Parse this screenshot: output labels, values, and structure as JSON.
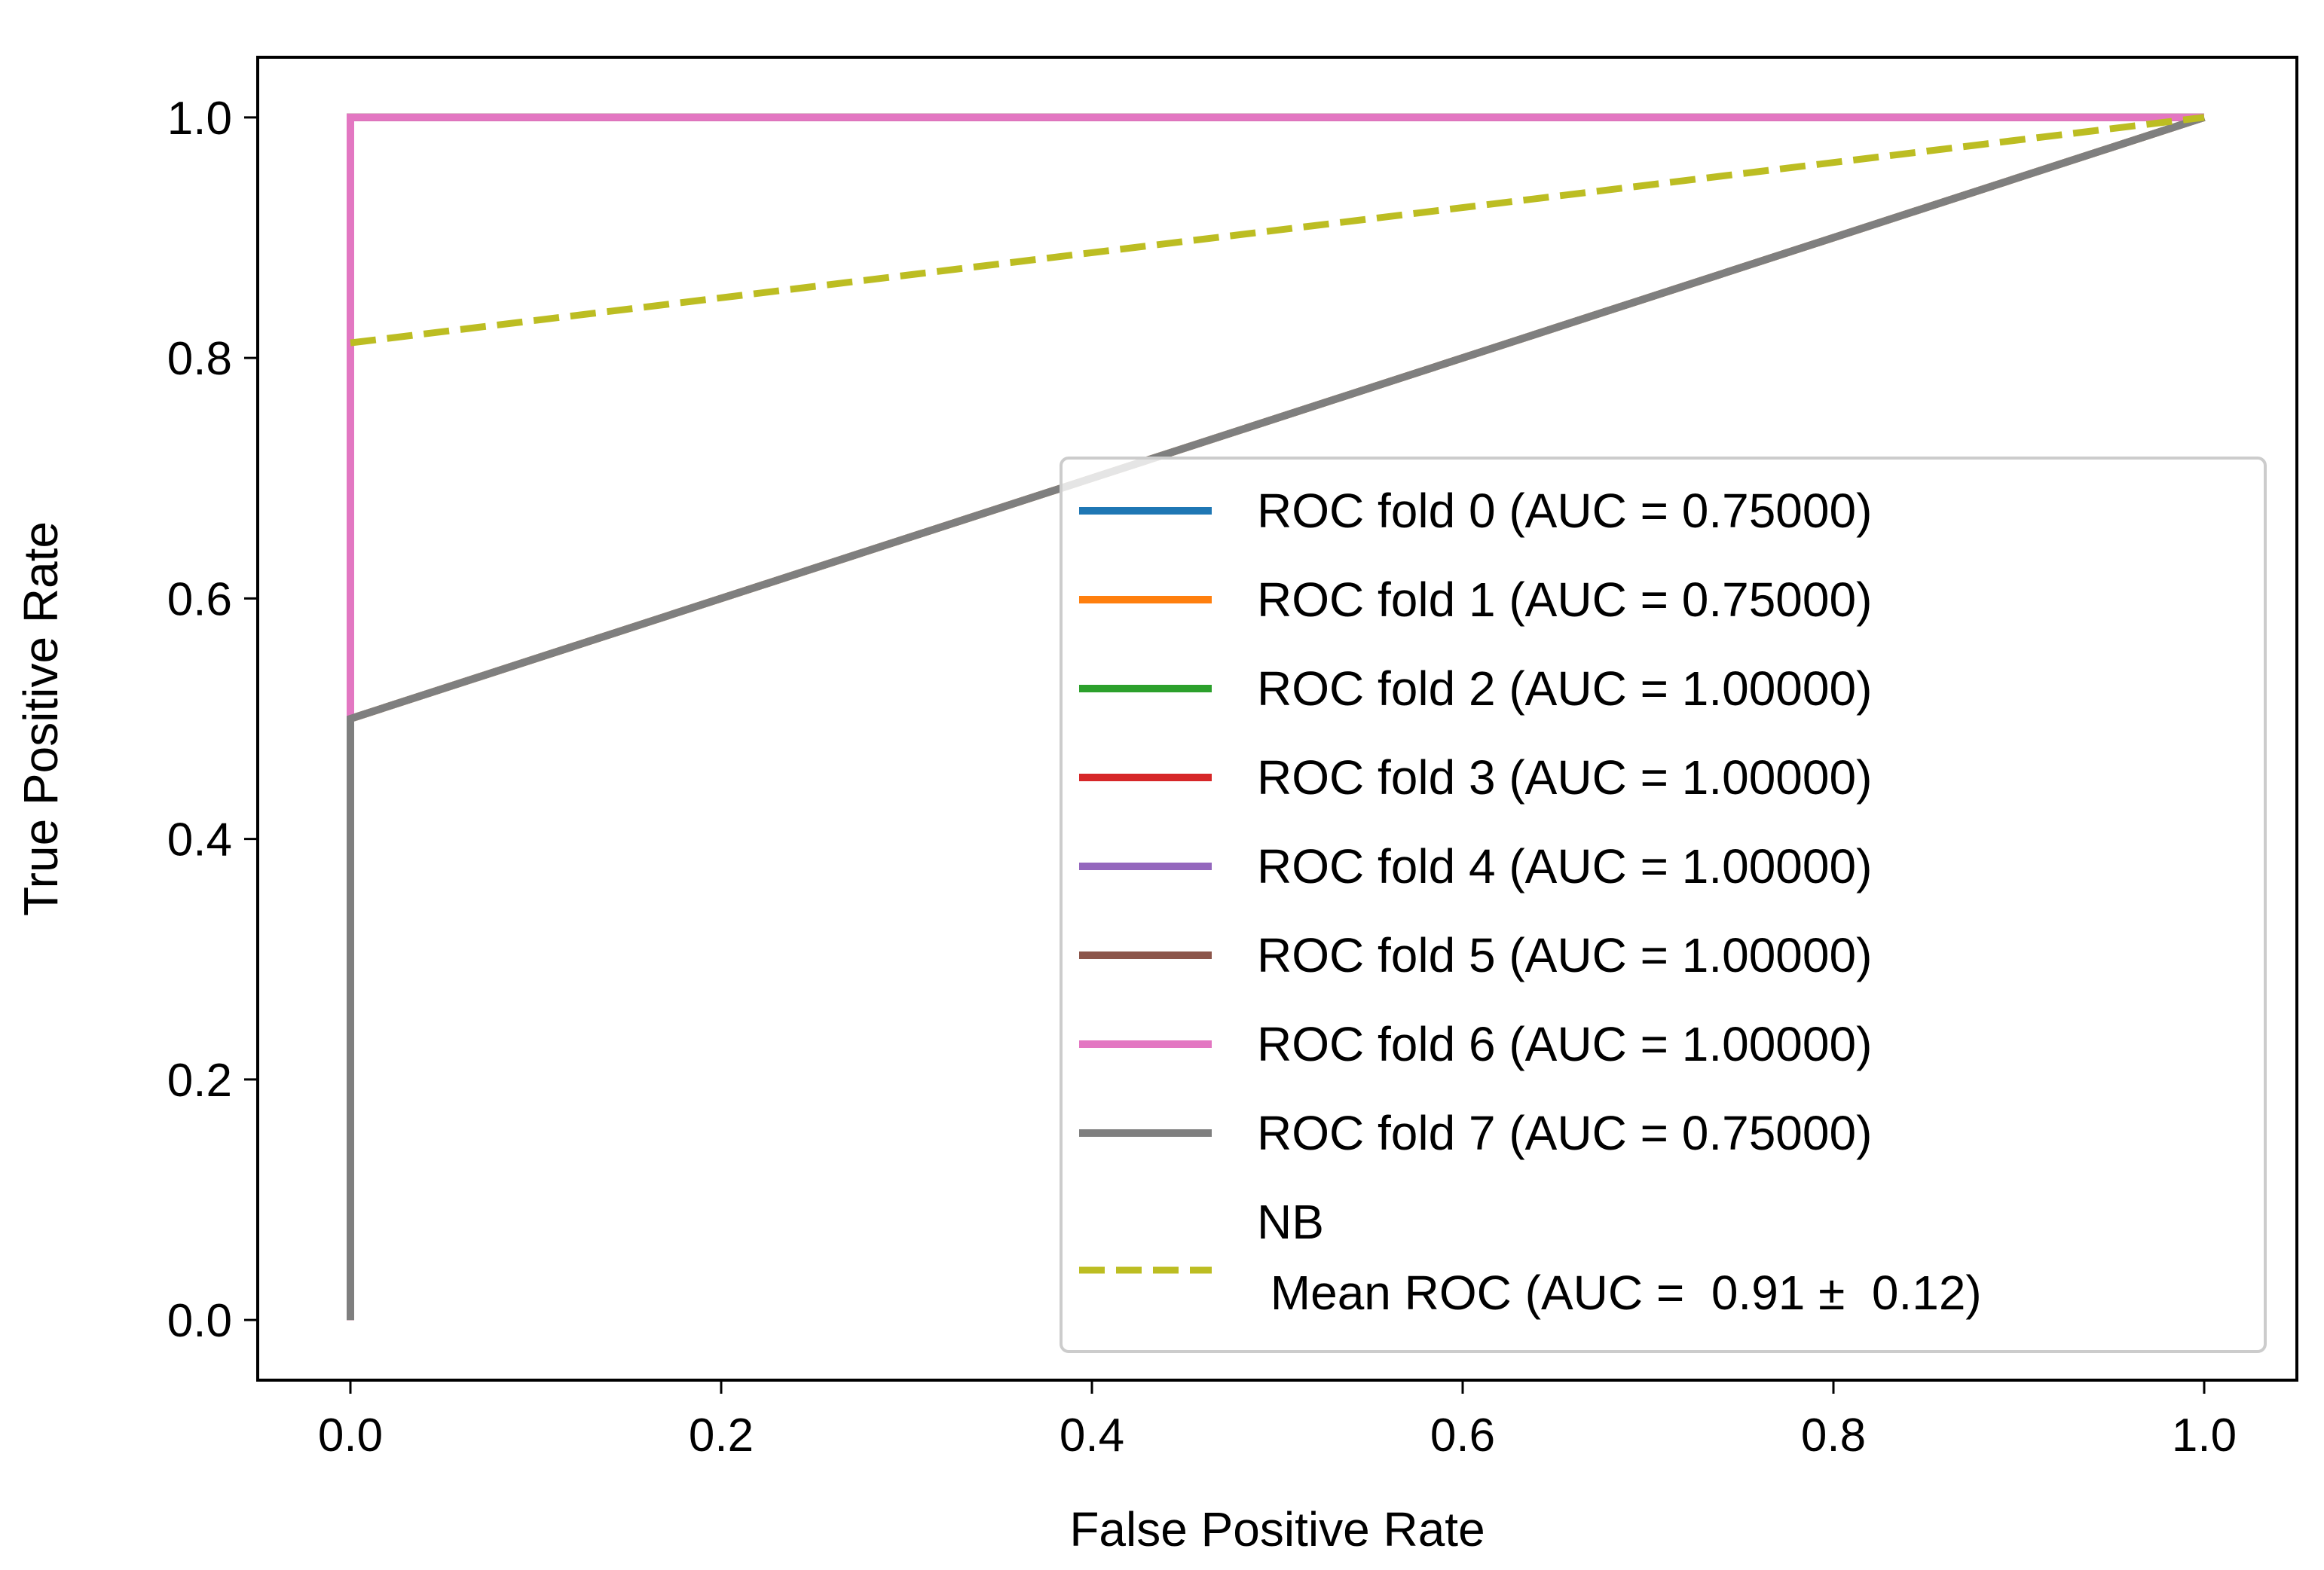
{
  "chart_data": {
    "type": "line",
    "title": "",
    "xlabel": "False Positive Rate",
    "ylabel": "True Positive Rate",
    "xlim": [
      -0.05,
      1.05
    ],
    "ylim": [
      -0.05,
      1.05
    ],
    "xticks": [
      0.0,
      0.2,
      0.4,
      0.6,
      0.8,
      1.0
    ],
    "yticks": [
      0.0,
      0.2,
      0.4,
      0.6,
      0.8,
      1.0
    ],
    "xtick_labels": [
      "0.0",
      "0.2",
      "0.4",
      "0.6",
      "0.8",
      "1.0"
    ],
    "ytick_labels": [
      "0.0",
      "0.2",
      "0.4",
      "0.6",
      "0.8",
      "1.0"
    ],
    "grid": false,
    "legend_position": "lower-right",
    "series": [
      {
        "name": "ROC fold 0 (AUC =  0.75000)",
        "color": "#1f77b4",
        "style": "solid",
        "x": [
          0.0,
          0.0,
          1.0
        ],
        "y": [
          0.0,
          0.5,
          1.0
        ]
      },
      {
        "name": "ROC fold 1 (AUC =  0.75000)",
        "color": "#ff7f0e",
        "style": "solid",
        "x": [
          0.0,
          0.0,
          1.0
        ],
        "y": [
          0.0,
          0.5,
          1.0
        ]
      },
      {
        "name": "ROC fold 2 (AUC =  1.00000)",
        "color": "#2ca02c",
        "style": "solid",
        "x": [
          0.0,
          0.0,
          1.0
        ],
        "y": [
          0.0,
          1.0,
          1.0
        ]
      },
      {
        "name": "ROC fold 3 (AUC =  1.00000)",
        "color": "#d62728",
        "style": "solid",
        "x": [
          0.0,
          0.0,
          1.0
        ],
        "y": [
          0.0,
          1.0,
          1.0
        ]
      },
      {
        "name": "ROC fold 4 (AUC =  1.00000)",
        "color": "#9467bd",
        "style": "solid",
        "x": [
          0.0,
          0.0,
          1.0
        ],
        "y": [
          0.0,
          1.0,
          1.0
        ]
      },
      {
        "name": "ROC fold 5 (AUC =  1.00000)",
        "color": "#8c564b",
        "style": "solid",
        "x": [
          0.0,
          0.0,
          1.0
        ],
        "y": [
          0.0,
          1.0,
          1.0
        ]
      },
      {
        "name": "ROC fold 6 (AUC =  1.00000)",
        "color": "#e377c2",
        "style": "solid",
        "x": [
          0.0,
          0.0,
          1.0
        ],
        "y": [
          0.0,
          1.0,
          1.0
        ]
      },
      {
        "name": "ROC fold 7 (AUC =  0.75000)",
        "color": "#7f7f7f",
        "style": "solid",
        "x": [
          0.0,
          0.0,
          1.0
        ],
        "y": [
          0.0,
          0.5,
          1.0
        ]
      },
      {
        "name": "NB\n Mean ROC (AUC =  0.91 ±  0.12)",
        "name_lines": [
          "NB",
          " Mean ROC (AUC =  0.91 ±  0.12)"
        ],
        "color": "#bcbd22",
        "style": "dashed",
        "x": [
          0.0,
          1.0
        ],
        "y": [
          0.8125,
          1.0
        ]
      }
    ]
  }
}
